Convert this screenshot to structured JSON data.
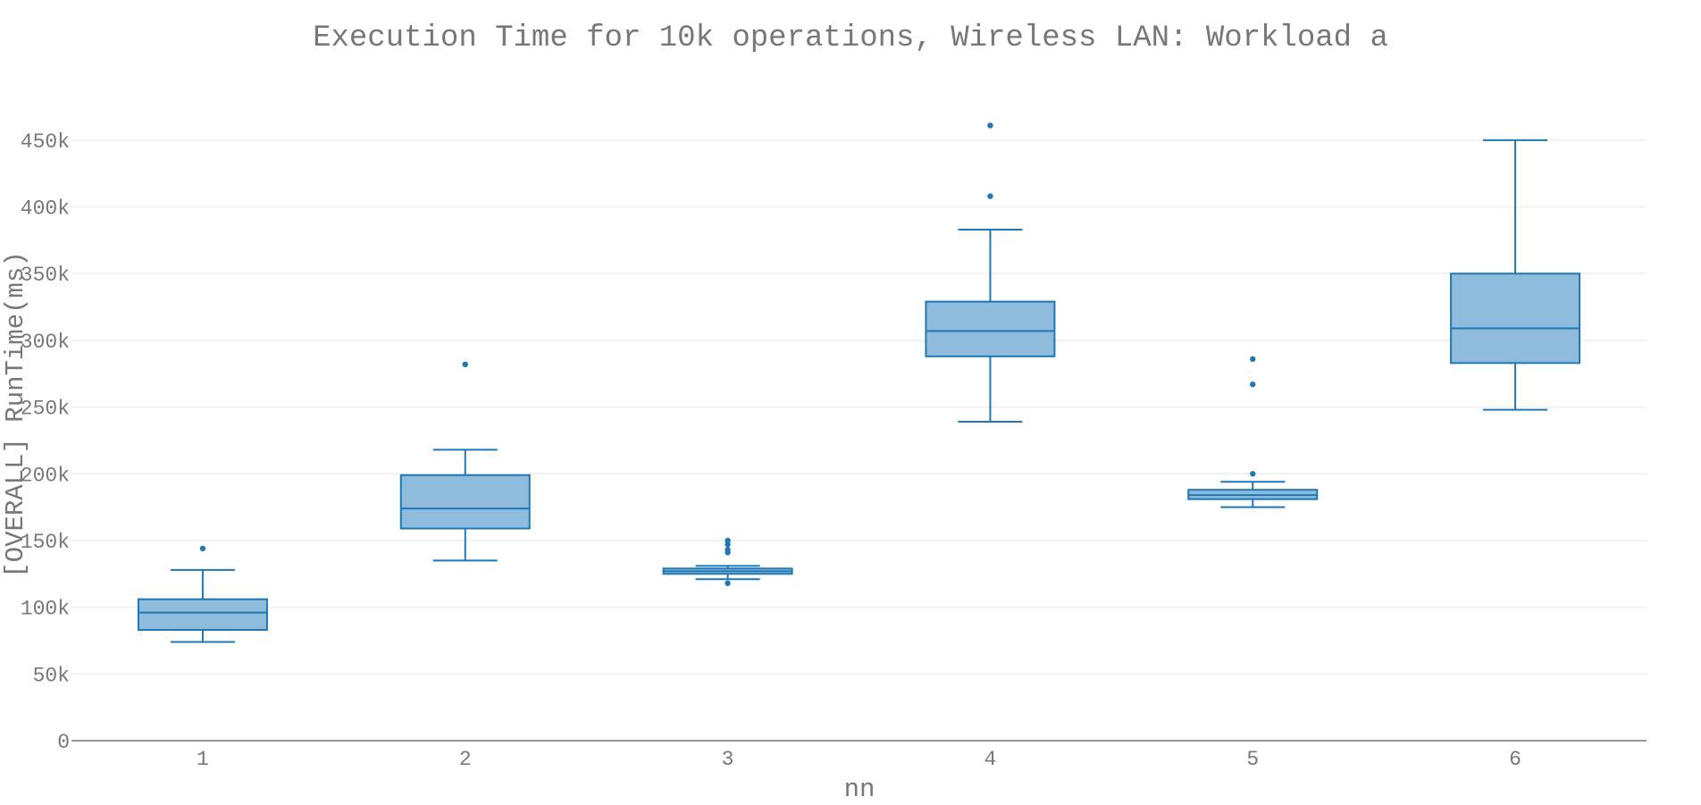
{
  "chart_data": {
    "type": "box",
    "title": "Execution Time for 10k operations, Wireless LAN: Workload a",
    "xlabel": "nn",
    "ylabel": "[OVERALL] RunTime(ms)",
    "categories": [
      "1",
      "2",
      "3",
      "4",
      "5",
      "6"
    ],
    "ylim": [
      0,
      450000
    ],
    "yticks": [
      0,
      50000,
      100000,
      150000,
      200000,
      250000,
      300000,
      350000,
      400000,
      450000
    ],
    "ytick_labels": [
      "0",
      "50k",
      "100k",
      "150k",
      "200k",
      "250k",
      "300k",
      "350k",
      "400k",
      "450k"
    ],
    "grid": true,
    "colors": {
      "box_fill": "#8fbbdd",
      "box_line": "#1f77b4",
      "text": "#777777",
      "grid": "#eeeeee"
    },
    "boxes": [
      {
        "category": "1",
        "lower_whisker": 74000,
        "q1": 83000,
        "median": 96000,
        "q3": 106000,
        "upper_whisker": 128000,
        "outliers": [
          144000
        ]
      },
      {
        "category": "2",
        "lower_whisker": 135000,
        "q1": 159000,
        "median": 174000,
        "q3": 199000,
        "upper_whisker": 218000,
        "outliers": [
          282000
        ]
      },
      {
        "category": "3",
        "lower_whisker": 121000,
        "q1": 125000,
        "median": 127000,
        "q3": 129000,
        "upper_whisker": 131000,
        "outliers": [
          118000,
          141000,
          143000,
          147000,
          150000
        ]
      },
      {
        "category": "4",
        "lower_whisker": 239000,
        "q1": 288000,
        "median": 307000,
        "q3": 329000,
        "upper_whisker": 383000,
        "outliers": [
          408000,
          461000
        ]
      },
      {
        "category": "5",
        "lower_whisker": 175000,
        "q1": 181000,
        "median": 184000,
        "q3": 188000,
        "upper_whisker": 194000,
        "outliers": [
          200000,
          267000,
          286000
        ]
      },
      {
        "category": "6",
        "lower_whisker": 248000,
        "q1": 283000,
        "median": 309000,
        "q3": 350000,
        "upper_whisker": 450000,
        "outliers": []
      }
    ]
  }
}
